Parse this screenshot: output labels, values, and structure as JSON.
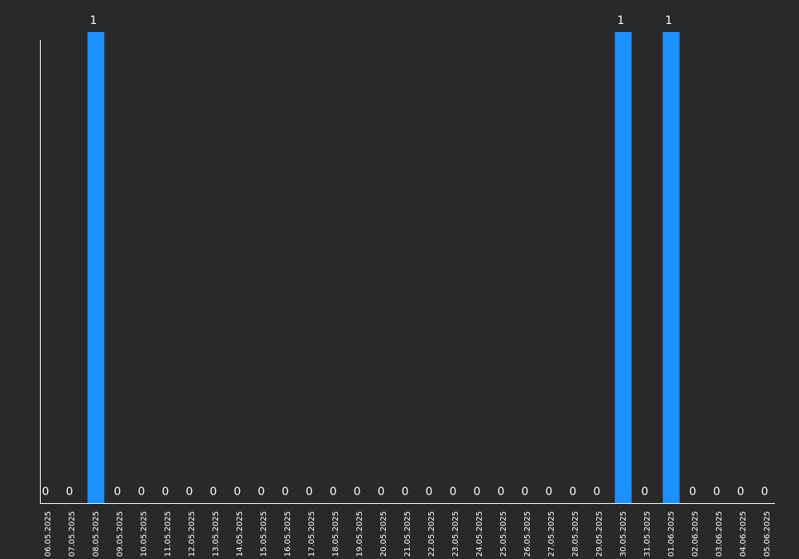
{
  "chart_data": {
    "type": "bar",
    "categories": [
      "06.05.2025",
      "07.05.2025",
      "08.05.2025",
      "09.05.2025",
      "10.05.2025",
      "11.05.2025",
      "12.05.2025",
      "13.05.2025",
      "14.05.2025",
      "15.05.2025",
      "16.05.2025",
      "17.05.2025",
      "18.05.2025",
      "19.05.2025",
      "20.05.2025",
      "21.05.2025",
      "22.05.2025",
      "23.05.2025",
      "24.05.2025",
      "25.05.2025",
      "26.05.2025",
      "27.05.2025",
      "28.05.2025",
      "29.05.2025",
      "30.05.2025",
      "31.05.2025",
      "01.06.2025",
      "02.06.2025",
      "03.06.2025",
      "04.06.2025",
      "05.06.2025"
    ],
    "values": [
      0,
      0,
      1,
      0,
      0,
      0,
      0,
      0,
      0,
      0,
      0,
      0,
      0,
      0,
      0,
      0,
      0,
      0,
      0,
      0,
      0,
      0,
      0,
      0,
      1,
      0,
      1,
      0,
      0,
      0,
      0
    ],
    "color": "#1e90ff",
    "ylim": [
      0,
      1
    ]
  }
}
